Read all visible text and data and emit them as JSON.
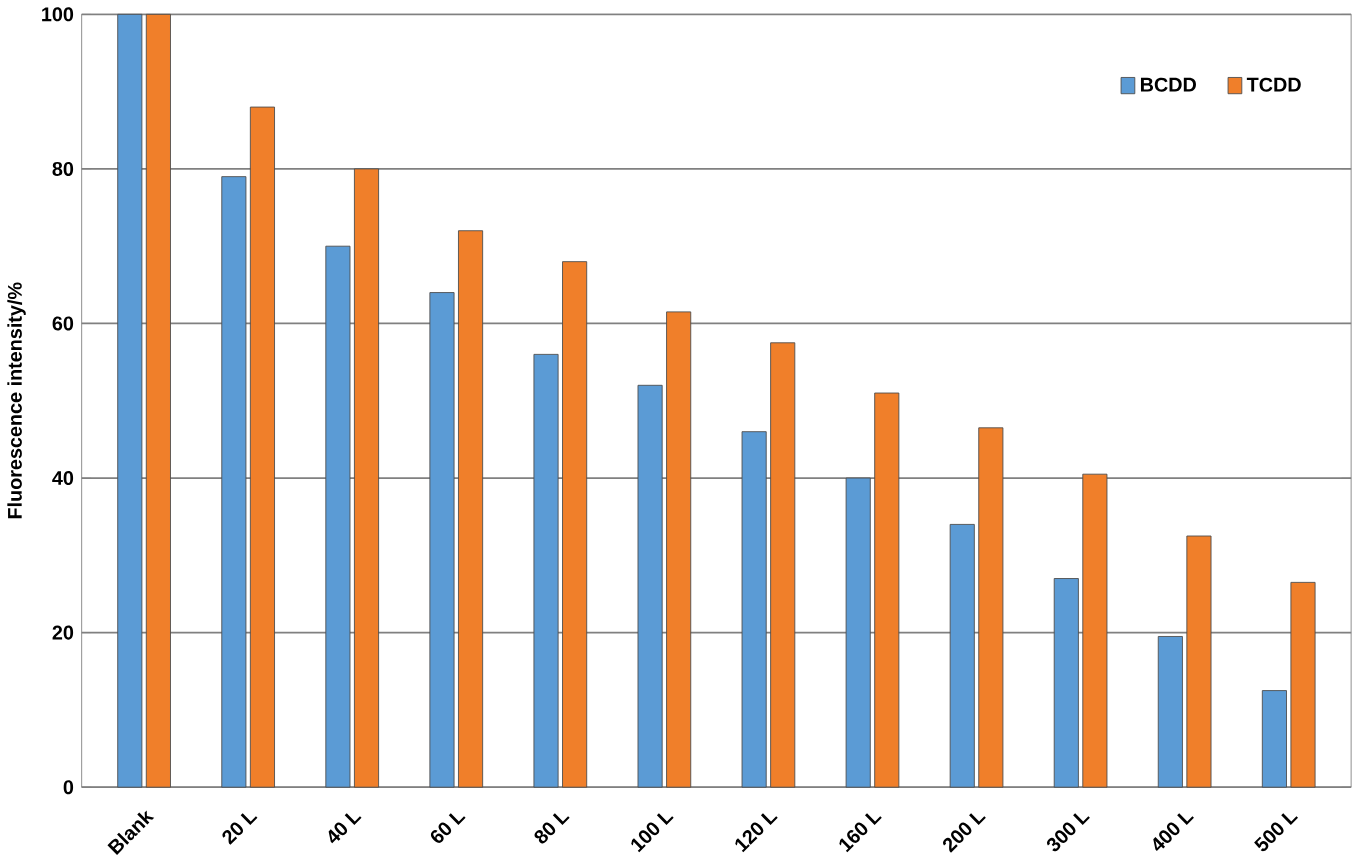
{
  "chart_data": {
    "type": "bar",
    "ylabel": "Fluorescence intensity/%",
    "categories": [
      "Blank",
      "20 L",
      "40 L",
      "60 L",
      "80 L",
      "100 L",
      "120 L",
      "160 L",
      "200 L",
      "300 L",
      "400 L",
      "500 L"
    ],
    "series": [
      {
        "name": "BCDD",
        "color": "#5b9bd5",
        "values": [
          100,
          79,
          70,
          64,
          56,
          52,
          46,
          40,
          34,
          27,
          19.5,
          12.5
        ]
      },
      {
        "name": "TCDD",
        "color": "#f07f2a",
        "values": [
          100,
          88,
          80,
          72,
          68,
          61.5,
          57.5,
          51,
          46.5,
          40.5,
          32.5,
          26.5
        ]
      }
    ],
    "ylim": [
      0,
      100
    ],
    "yticks": [
      0,
      20,
      40,
      60,
      80,
      100
    ],
    "grid": "y",
    "legend": "top right"
  }
}
